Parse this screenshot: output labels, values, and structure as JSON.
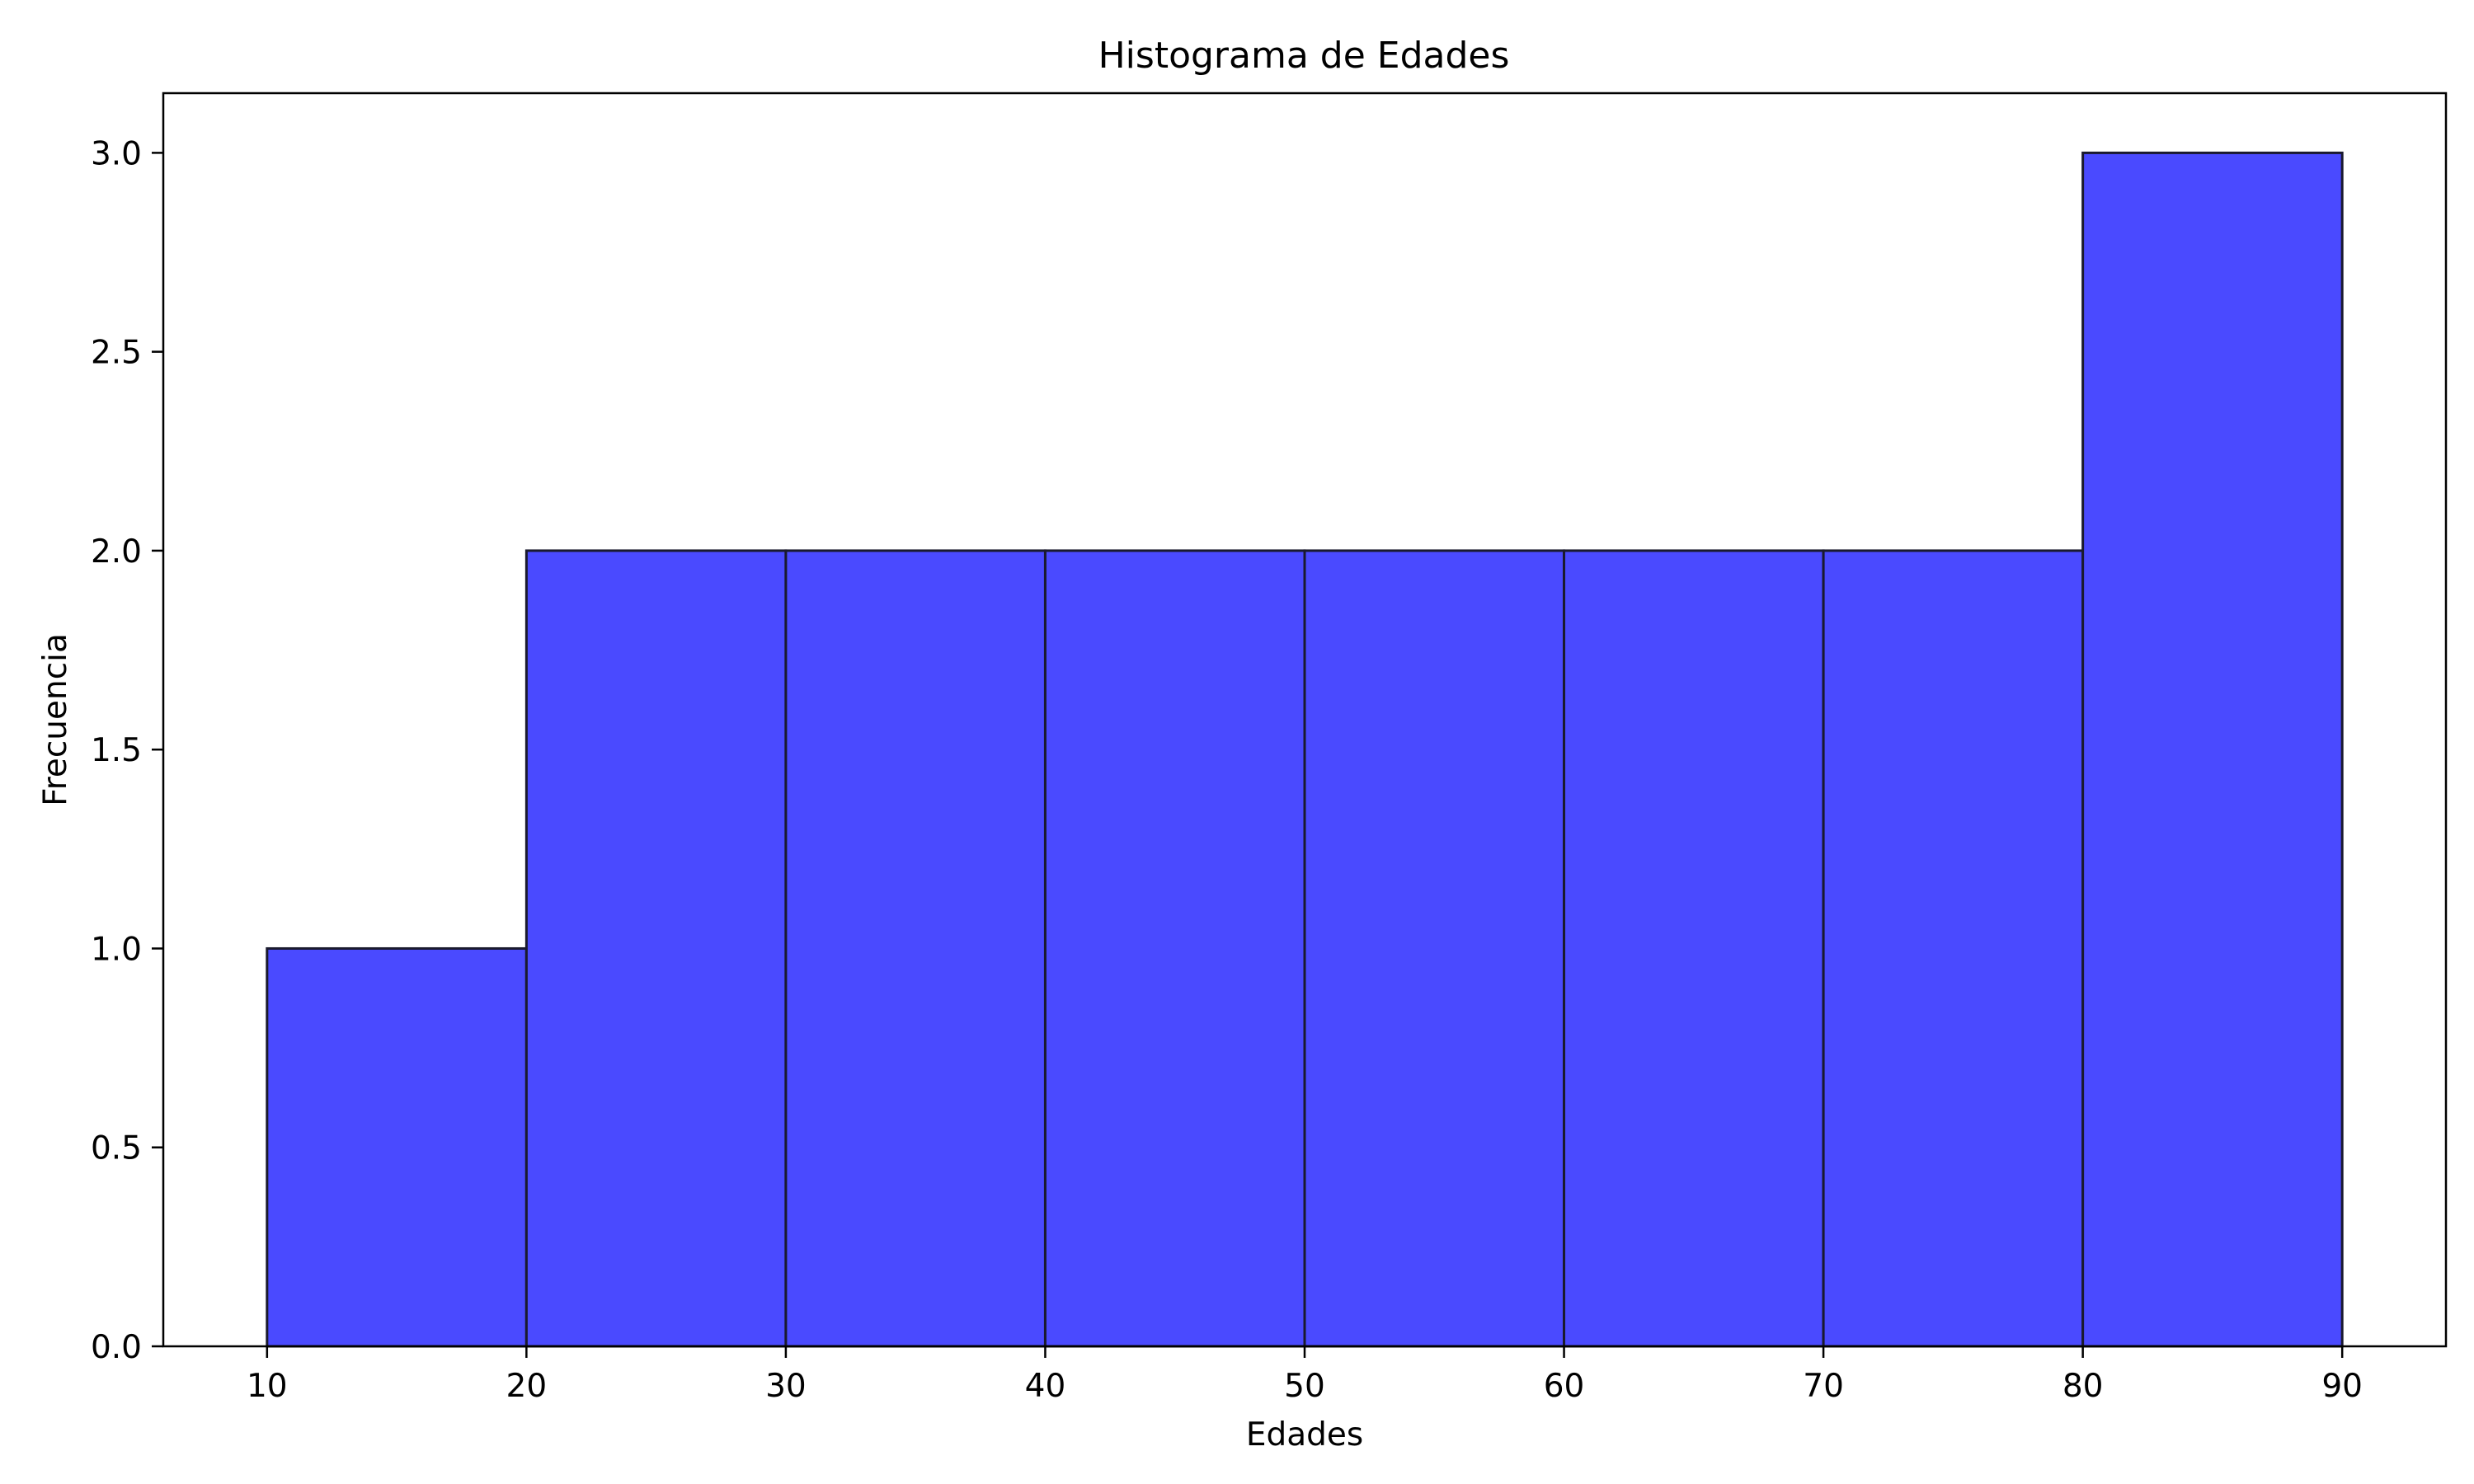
{
  "chart_data": {
    "type": "histogram",
    "title": "Histograma de Edades",
    "xlabel": "Edades",
    "ylabel": "Frecuencia",
    "bins": [
      {
        "start": 10,
        "end": 20,
        "value": 1
      },
      {
        "start": 20,
        "end": 30,
        "value": 2
      },
      {
        "start": 30,
        "end": 40,
        "value": 2
      },
      {
        "start": 40,
        "end": 50,
        "value": 2
      },
      {
        "start": 50,
        "end": 60,
        "value": 2
      },
      {
        "start": 60,
        "end": 70,
        "value": 2
      },
      {
        "start": 70,
        "end": 80,
        "value": 2
      },
      {
        "start": 80,
        "end": 90,
        "value": 3
      }
    ],
    "xlim": [
      6,
      94
    ],
    "ylim": [
      0,
      3.15
    ],
    "xticks": [
      10,
      20,
      30,
      40,
      50,
      60,
      70,
      80,
      90
    ],
    "xtick_labels": [
      "10",
      "20",
      "30",
      "40",
      "50",
      "60",
      "70",
      "80",
      "90"
    ],
    "yticks": [
      0,
      0.5,
      1.0,
      1.5,
      2.0,
      2.5,
      3.0
    ],
    "ytick_labels": [
      "0.0",
      "0.5",
      "1.0",
      "1.5",
      "2.0",
      "2.5",
      "3.0"
    ],
    "grid": false,
    "legend": "none",
    "bar_color": "#4a4aff",
    "edge_color": "#1a1a2e"
  }
}
